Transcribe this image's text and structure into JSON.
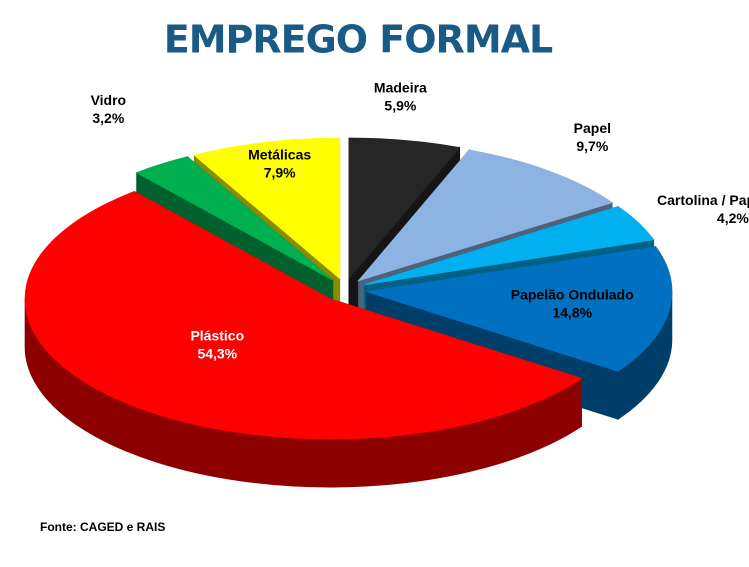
{
  "chart_data": {
    "type": "pie",
    "title": "EMPREGO FORMAL",
    "source": "Fonte: CAGED e RAIS",
    "categories": [
      "Madeira",
      "Papel",
      "Cartolina / Papelcartão",
      "Papelão Ondulado",
      "Plástico",
      "Vidro",
      "Metálicas"
    ],
    "values": [
      5.9,
      9.7,
      4.2,
      14.8,
      54.3,
      3.2,
      7.9
    ],
    "value_labels": [
      "5,9%",
      "9,7%",
      "4,2%",
      "14,8%",
      "54,3%",
      "3,2%",
      "7,9%"
    ],
    "colors": [
      "#262626",
      "#8db3e2",
      "#00b0f0",
      "#0070c0",
      "#ff0000",
      "#00b050",
      "#ffff00"
    ]
  }
}
